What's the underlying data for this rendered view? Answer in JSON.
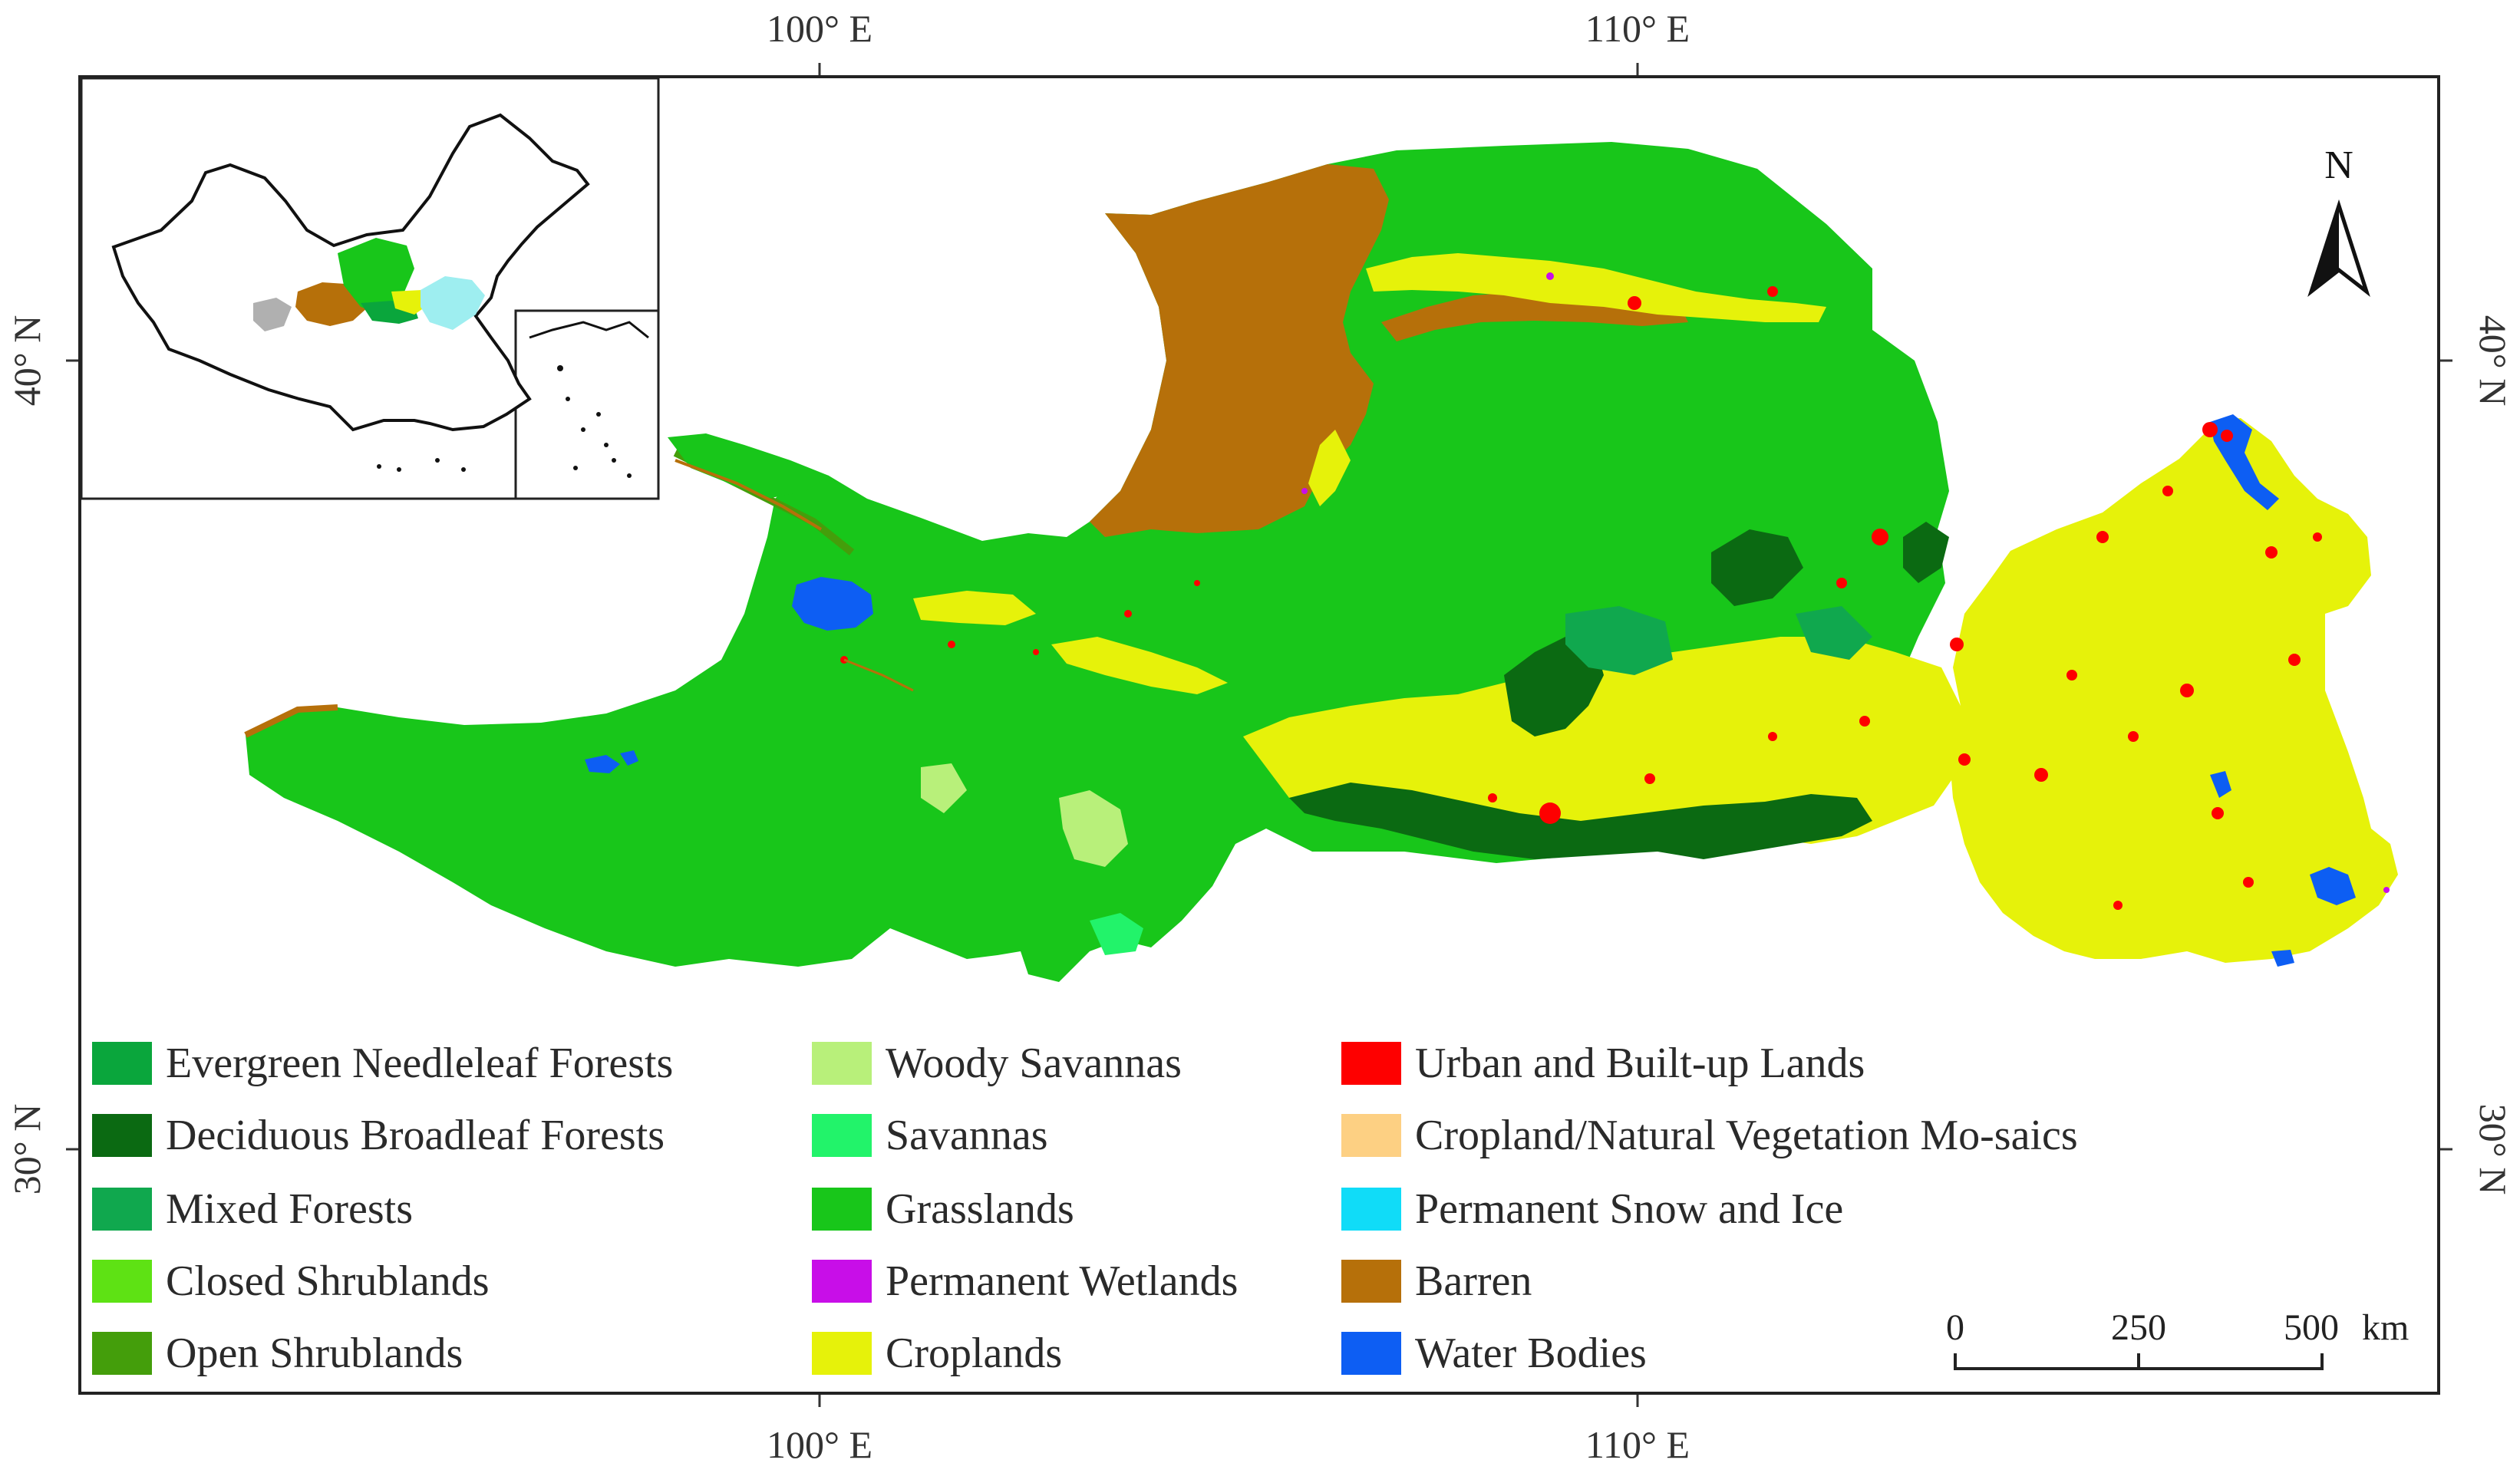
{
  "map": {
    "graticule": {
      "top_labels": [
        "100° E",
        "110° E"
      ],
      "bottom_labels": [
        "100° E",
        "110° E"
      ],
      "left_labels": [
        "40° N",
        "30° N"
      ],
      "right_labels": [
        "40° N",
        "30° N"
      ]
    },
    "north_arrow": {
      "label": "N"
    },
    "scale_bar": {
      "ticks": [
        "0",
        "250",
        "500"
      ],
      "unit": "km"
    },
    "inset": {
      "description_visible": false
    }
  },
  "legend": {
    "items": [
      {
        "label": "Evergreen Needleleaf Forests",
        "color": "#0aa63c"
      },
      {
        "label": "Deciduous Broadleaf Forests",
        "color": "#0b6a12"
      },
      {
        "label": "Mixed Forests",
        "color": "#10a84e"
      },
      {
        "label": "Closed Shrublands",
        "color": "#5ee214"
      },
      {
        "label": "Open Shrublands",
        "color": "#449e0b"
      },
      {
        "label": "Woody Savannas",
        "color": "#b8f07a"
      },
      {
        "label": "Savannas",
        "color": "#22f36a"
      },
      {
        "label": "Grasslands",
        "color": "#18c61a"
      },
      {
        "label": "Permanent Wetlands",
        "color": "#c80ee8"
      },
      {
        "label": "Croplands",
        "color": "#e6f20a"
      },
      {
        "label": "Urban and Built-up Lands",
        "color": "#fe0000"
      },
      {
        "label": "Cropland/Natural Vegetation Mo-saics",
        "color": "#fdd083"
      },
      {
        "label": "Permanent Snow and Ice",
        "color": "#10dcf8"
      },
      {
        "label": "Barren",
        "color": "#b6700a"
      },
      {
        "label": "Water Bodies",
        "color": "#0d5ef3"
      }
    ]
  }
}
